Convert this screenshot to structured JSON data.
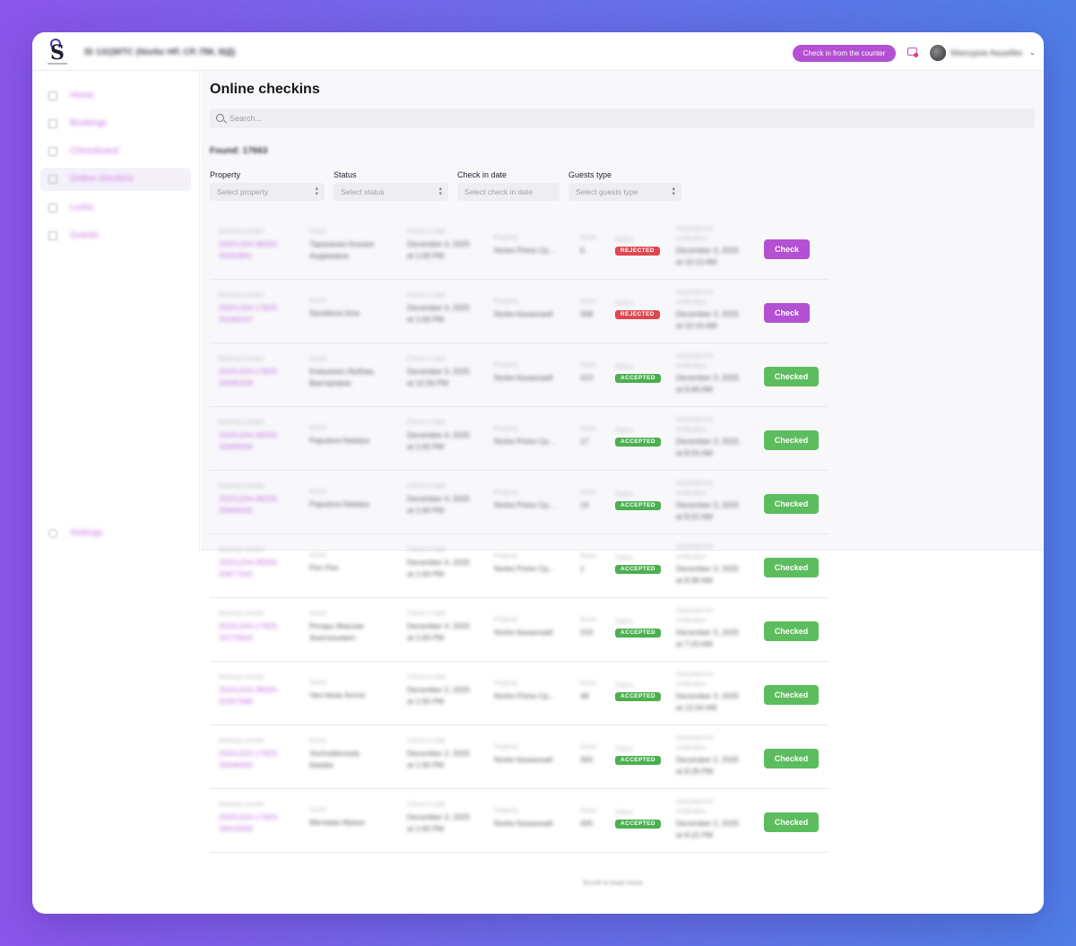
{
  "header": {
    "org_title": "ID 131|WTC (Norke HP, CP, ПМ, МД)",
    "counter_button": "Check in from the counter",
    "user_name": "Мансуров Акшибек"
  },
  "sidebar": {
    "items": [
      {
        "label": "Home",
        "icon": "home-icon"
      },
      {
        "label": "Bookings",
        "icon": "bookings-icon"
      },
      {
        "label": "Chessboard",
        "icon": "calendar-icon"
      },
      {
        "label": "Online checkins",
        "icon": "checkin-icon"
      },
      {
        "label": "Locks",
        "icon": "lock-icon"
      },
      {
        "label": "Guests",
        "icon": "user-icon"
      }
    ],
    "settings_label": "Settings"
  },
  "page": {
    "title": "Online checkins",
    "search_placeholder": "Search...",
    "found_text": "Found: 17663"
  },
  "filters": [
    {
      "label": "Property",
      "placeholder": "Select property"
    },
    {
      "label": "Status",
      "placeholder": "Select status"
    },
    {
      "label": "Check in date",
      "placeholder": "Select check in date"
    },
    {
      "label": "Guests type",
      "placeholder": "Select guests type"
    }
  ],
  "table": {
    "captions": {
      "booking": "Booking number",
      "guest": "Guest",
      "checkin": "Check in date",
      "property": "Property",
      "room": "Room",
      "status": "Status",
      "submitted": "Submitted for verification"
    },
    "rows": [
      {
        "booking": [
          "20251204-38200-",
          "20253841"
        ],
        "guest": [
          "Тараненко Ксения",
          "Андреевна"
        ],
        "checkin": [
          "December 4, 2025",
          "at 1:00 PM"
        ],
        "property": "Norke Prime Cp...",
        "room": "6",
        "status": "REJECTED",
        "submitted": [
          "December 3, 2025",
          "at 10:13 AM"
        ],
        "action": "Check"
      },
      {
        "booking": [
          "20251204-17823-",
          "20160107"
        ],
        "guest": [
          "Savelieva Irina"
        ],
        "checkin": [
          "December 4, 2025",
          "at 1:00 PM"
        ],
        "property": "Norke Казанский",
        "room": "308",
        "status": "REJECTED",
        "submitted": [
          "December 3, 2025",
          "at 10:10 AM"
        ],
        "action": "Check"
      },
      {
        "booking": [
          "20251203-17823-",
          "20085428"
        ],
        "guest": [
          "Клишенко Любовь",
          "Викторовна"
        ],
        "checkin": [
          "December 3, 2025",
          "at 12:30 PM"
        ],
        "property": "Norke Казанский",
        "room": "413",
        "status": "ACCEPTED",
        "submitted": [
          "December 3, 2025",
          "at 9:48 AM"
        ],
        "action": "Checked"
      },
      {
        "booking": [
          "20251204-38200-",
          "20849508"
        ],
        "guest": [
          "Papulova Natalya"
        ],
        "checkin": [
          "December 4, 2025",
          "at 1:00 PM"
        ],
        "property": "Norke Prime Cp...",
        "room": "17",
        "status": "ACCEPTED",
        "submitted": [
          "December 3, 2025",
          "at 8:24 AM"
        ],
        "action": "Checked"
      },
      {
        "booking": [
          "20251204-38200-",
          "20849505"
        ],
        "guest": [
          "Papulova Natalya"
        ],
        "checkin": [
          "December 4, 2025",
          "at 1:00 PM"
        ],
        "property": "Norke Prime Cp...",
        "room": "14",
        "status": "ACCEPTED",
        "submitted": [
          "December 3, 2025",
          "at 8:22 AM"
        ],
        "action": "Checked"
      },
      {
        "booking": [
          "20251204-38200-",
          "20877042"
        ],
        "guest": [
          "Pen Pen"
        ],
        "checkin": [
          "December 4, 2025",
          "at 1:00 PM"
        ],
        "property": "Norke Prime Cp...",
        "room": "1",
        "status": "ACCEPTED",
        "submitted": [
          "December 3, 2025",
          "at 8:38 AM"
        ],
        "action": "Checked"
      },
      {
        "booking": [
          "20251204-17823-",
          "20179620"
        ],
        "guest": [
          "Ротарь Максим",
          "Анатольевич"
        ],
        "checkin": [
          "December 4, 2025",
          "at 1:00 PM"
        ],
        "property": "Norke Казанский",
        "room": "316",
        "status": "ACCEPTED",
        "submitted": [
          "December 3, 2025",
          "at 7:23 AM"
        ],
        "action": "Checked"
      },
      {
        "booking": [
          "20251202-38200-",
          "20357689"
        ],
        "guest": [
          "Чистяков Антон"
        ],
        "checkin": [
          "December 2, 2025",
          "at 1:00 PM"
        ],
        "property": "Norke Prime Cp...",
        "room": "38",
        "status": "ACCEPTED",
        "submitted": [
          "December 3, 2025",
          "at 12:34 AM"
        ],
        "action": "Checked"
      },
      {
        "booking": [
          "20251202-17823-",
          "20046400"
        ],
        "guest": [
          "Vochublennaia",
          "Natalia"
        ],
        "checkin": [
          "December 2, 2025",
          "at 1:00 PM"
        ],
        "property": "Norke Казанский",
        "room": "305",
        "status": "ACCEPTED",
        "submitted": [
          "December 2, 2025",
          "at 8:28 PM"
        ],
        "action": "Checked"
      },
      {
        "booking": [
          "20251203-17823-",
          "20015059"
        ],
        "guest": [
          "Митяева Ирина"
        ],
        "checkin": [
          "December 3, 2025",
          "at 1:00 PM"
        ],
        "property": "Norke Казанский",
        "room": "405",
        "status": "ACCEPTED",
        "submitted": [
          "December 2, 2025",
          "at 8:15 PM"
        ],
        "action": "Checked"
      }
    ]
  },
  "load_more": "Scroll to load more",
  "colors": {
    "accent": "#b350d3",
    "accepted": "#4caf50",
    "rejected": "#e0474f",
    "checked_button": "#5cbd5f"
  }
}
